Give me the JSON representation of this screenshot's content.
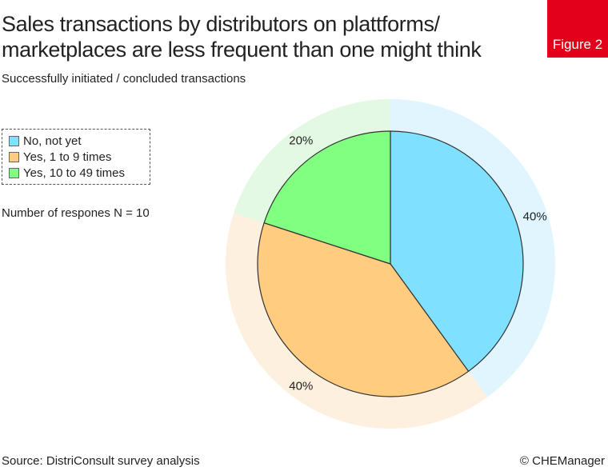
{
  "header": {
    "title_line1": "Sales transactions by distributors on plattforms/",
    "title_line2": "marketplaces are less frequent than one might think",
    "subtitle": "Successfully initiated / concluded transactions",
    "figure_label": "Figure 2"
  },
  "note": "Number of respones N = 10",
  "footer": {
    "source": "Source: DistriConsult survey analysis",
    "copyright": "© CHEManager"
  },
  "chart_data": {
    "type": "pie",
    "title": "Sales transactions by distributors on plattforms/ marketplaces are less frequent than one might think",
    "subtitle": "Successfully initiated / concluded transactions",
    "legend_position": "left",
    "slices": [
      {
        "label": "No, not yet",
        "value": 40,
        "display": "40%",
        "color": "#80e0ff",
        "halo": "#e0f5fd"
      },
      {
        "label": "Yes, 1 to 9 times",
        "value": 40,
        "display": "40%",
        "color": "#ffcc80",
        "halo": "#fdf0df"
      },
      {
        "label": "Yes, 10 to 49 times",
        "value": 20,
        "display": "20%",
        "color": "#80ff80",
        "halo": "#e3f9e3"
      }
    ]
  }
}
